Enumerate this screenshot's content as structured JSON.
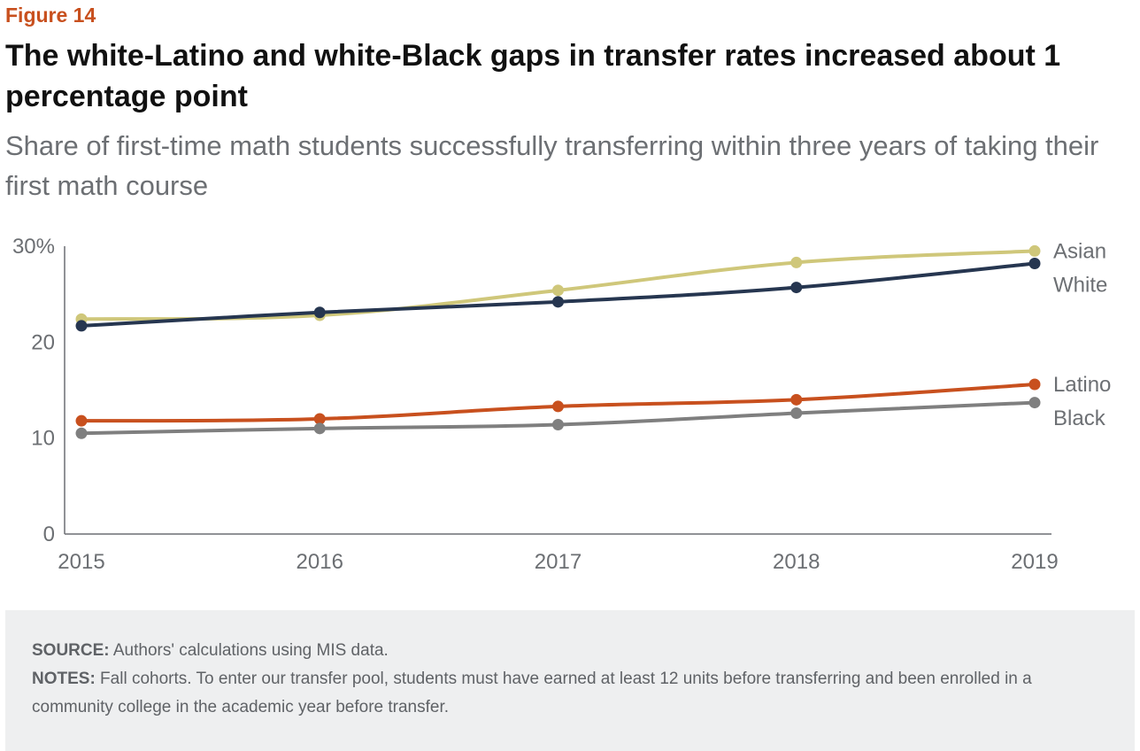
{
  "figure_label": "Figure 14",
  "title": "The white-Latino and white-Black gaps in transfer rates increased about 1 percentage point",
  "subtitle": "Share of first-time math students successfully transferring within three years of taking their first math course",
  "chart_data": {
    "type": "line",
    "title": "The white-Latino and white-Black gaps in transfer rates increased about 1 percentage point",
    "subtitle": "Share of first-time math students successfully transferring within three years of taking their first math course",
    "x": [
      "2015",
      "2016",
      "2017",
      "2018",
      "2019"
    ],
    "ylim": [
      0,
      30
    ],
    "yticks": [
      0,
      10,
      20,
      30
    ],
    "ytick_labels": [
      "0",
      "10",
      "20",
      "30%"
    ],
    "grid": false,
    "legend": "right, direct labels at line ends",
    "series": [
      {
        "name": "Asian",
        "color": "#cfc77a",
        "values": [
          22.4,
          22.8,
          25.4,
          28.3,
          29.5
        ]
      },
      {
        "name": "White",
        "color": "#263650",
        "values": [
          21.7,
          23.1,
          24.2,
          25.7,
          28.2
        ]
      },
      {
        "name": "Latino",
        "color": "#c8501e",
        "values": [
          11.8,
          12.0,
          13.3,
          14.0,
          15.6
        ]
      },
      {
        "name": "Black",
        "color": "#7f7f7f",
        "values": [
          10.5,
          11.0,
          11.4,
          12.6,
          13.7
        ]
      }
    ]
  },
  "footer": {
    "source_label": "SOURCE:",
    "source_text": " Authors' calculations using MIS data.",
    "notes_label": "NOTES:",
    "notes_text": " Fall cohorts. To enter our transfer pool, students must have earned at least 12 units before transferring and been enrolled in a community college in the academic year before transfer."
  }
}
